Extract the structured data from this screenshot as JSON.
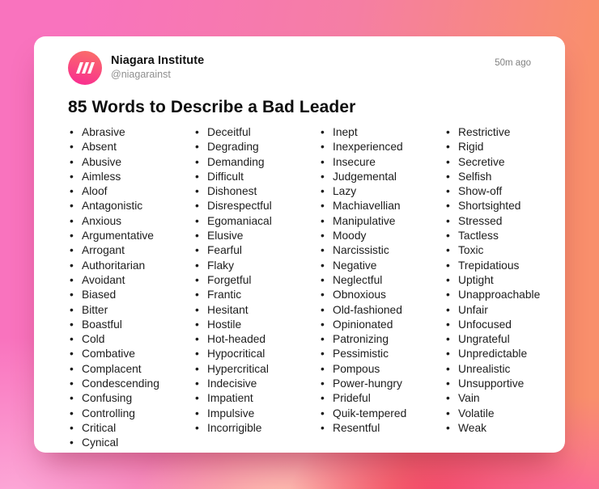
{
  "header": {
    "brand_name": "Niagara Institute",
    "handle": "@niagarainst",
    "timestamp": "50m ago",
    "logo_icon": "niagara-triple-slash-icon"
  },
  "title": "85 Words to Describe a Bad Leader",
  "colors": {
    "logo_gradient_top": "#fa6f68",
    "logo_gradient_bottom": "#f9308f",
    "background_pink": "#f973be",
    "background_coral": "#f98f6c",
    "background_red": "#f33955",
    "background_light_pink": "#fcacd9",
    "card_background": "#ffffff",
    "text_color": "#1c1c1c"
  },
  "word_columns": [
    [
      "Abrasive",
      "Absent",
      "Abusive",
      "Aimless",
      "Aloof",
      "Antagonistic",
      "Anxious",
      "Argumentative",
      "Arrogant",
      "Authoritarian",
      "Avoidant",
      "Biased",
      "Bitter",
      "Boastful",
      "Cold",
      "Combative",
      "Complacent",
      "Condescending",
      "Confusing",
      "Controlling",
      "Critical",
      "Cynical"
    ],
    [
      "Deceitful",
      "Degrading",
      "Demanding",
      "Difficult",
      "Dishonest",
      "Disrespectful",
      "Egomaniacal",
      "Elusive",
      "Fearful",
      "Flaky",
      "Forgetful",
      "Frantic",
      "Hesitant",
      "Hostile",
      "Hot-headed",
      "Hypocritical",
      "Hypercritical",
      "Indecisive",
      "Impatient",
      "Impulsive",
      "Incorrigible"
    ],
    [
      "Inept",
      "Inexperienced",
      "Insecure",
      "Judgemental",
      "Lazy",
      "Machiavellian",
      "Manipulative",
      "Moody",
      "Narcissistic",
      "Negative",
      "Neglectful",
      "Obnoxious",
      "Old-fashioned",
      "Opinionated",
      "Patronizing",
      "Pessimistic",
      "Pompous",
      "Power-hungry",
      "Prideful",
      "Quik-tempered",
      "Resentful"
    ],
    [
      "Restrictive",
      "Rigid",
      "Secretive",
      "Selfish",
      "Show-off",
      "Shortsighted",
      "Stressed",
      "Tactless",
      "Toxic",
      "Trepidatious",
      "Uptight",
      "Unapproachable",
      "Unfair",
      "Unfocused",
      "Ungrateful",
      "Unpredictable",
      "Unrealistic",
      "Unsupportive",
      "Vain",
      "Volatile",
      "Weak"
    ]
  ]
}
